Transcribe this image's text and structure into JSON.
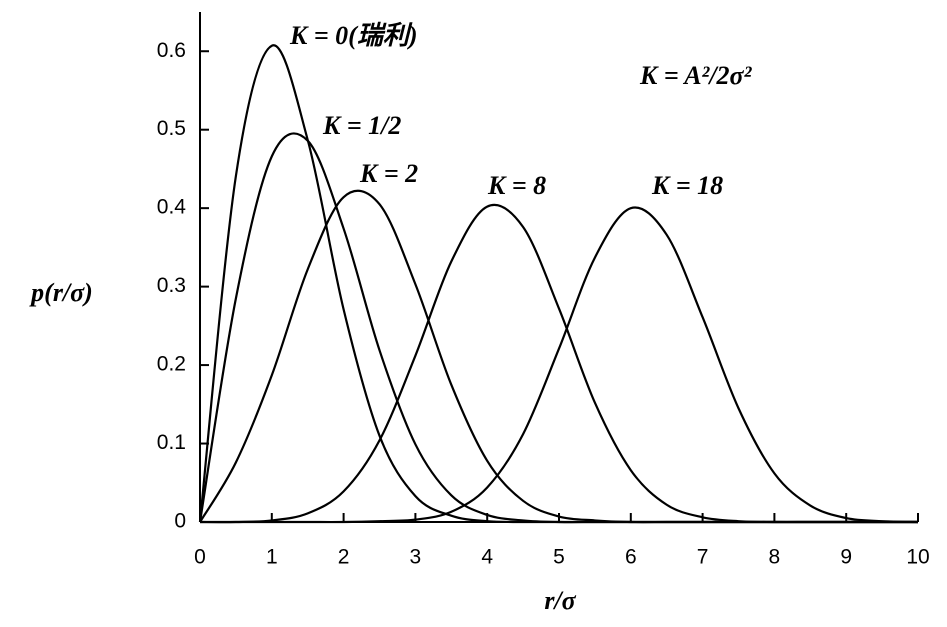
{
  "chart_data": {
    "type": "line",
    "x": [
      0,
      0.5,
      1,
      1.5,
      2,
      2.5,
      3,
      3.5,
      4,
      4.5,
      5,
      5.5,
      6,
      6.5,
      7,
      7.5,
      8,
      8.5,
      9,
      9.5,
      10
    ],
    "series": [
      {
        "name": "K = 0(瑞利)",
        "color": "#000000",
        "values": [
          0,
          0.441,
          0.607,
          0.487,
          0.271,
          0.11,
          0.033,
          0.008,
          0.001,
          0,
          0,
          0,
          0,
          0,
          0,
          0,
          0,
          0,
          0,
          0,
          0
        ]
      },
      {
        "name": "K = 1/2",
        "color": "#000000",
        "values": [
          0,
          0.285,
          0.466,
          0.486,
          0.374,
          0.219,
          0.099,
          0.034,
          0.009,
          0.002,
          0,
          0,
          0,
          0,
          0,
          0,
          0,
          0,
          0,
          0,
          0
        ]
      },
      {
        "name": "K = 2",
        "color": "#000000",
        "values": [
          0,
          0.076,
          0.187,
          0.322,
          0.414,
          0.405,
          0.303,
          0.175,
          0.078,
          0.027,
          0.007,
          0.002,
          0,
          0,
          0,
          0,
          0,
          0,
          0,
          0,
          0
        ]
      },
      {
        "name": "K = 8",
        "color": "#000000",
        "values": [
          0,
          0,
          0.002,
          0.011,
          0.039,
          0.104,
          0.212,
          0.332,
          0.402,
          0.376,
          0.272,
          0.152,
          0.066,
          0.022,
          0.006,
          0.001,
          0,
          0,
          0,
          0,
          0
        ]
      },
      {
        "name": "K = 18",
        "color": "#000000",
        "values": [
          0,
          0,
          0,
          0,
          0,
          0.001,
          0.003,
          0.013,
          0.044,
          0.112,
          0.221,
          0.337,
          0.4,
          0.366,
          0.261,
          0.145,
          0.062,
          0.021,
          0.005,
          0.001,
          0
        ]
      }
    ],
    "annotation": "K = A²/2σ²",
    "x_label": "r/σ",
    "y_label": "p(r/σ)",
    "xlim": [
      0,
      10
    ],
    "xticks": [
      0,
      1,
      2,
      3,
      4,
      5,
      6,
      7,
      8,
      9,
      10
    ],
    "ylim": [
      0,
      0.65
    ],
    "yticks": [
      0,
      0.1,
      0.2,
      0.3,
      0.4,
      0.5,
      0.6
    ]
  }
}
